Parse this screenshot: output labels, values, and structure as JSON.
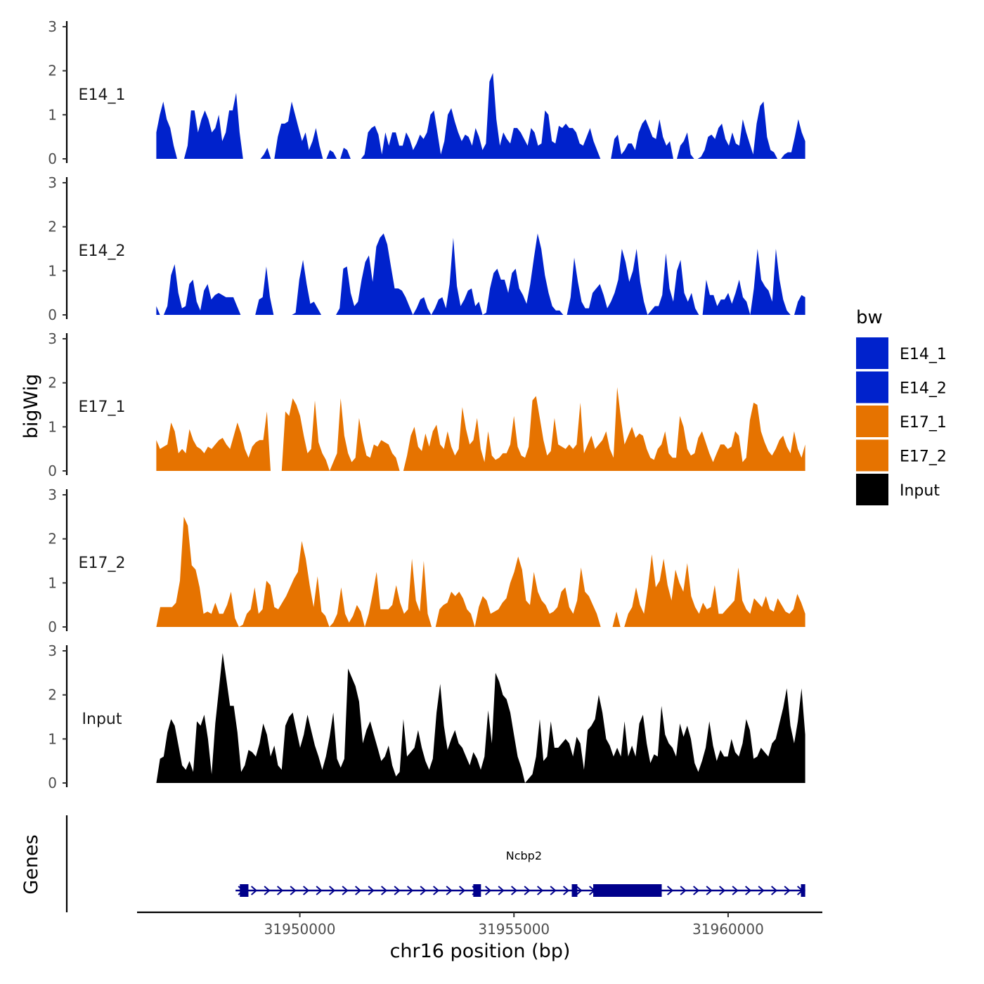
{
  "chart_data": {
    "type": "area",
    "title": "",
    "xlabel": "chr16 position (bp)",
    "ylabel": "bigWig",
    "genes_panel_label": "Genes",
    "xlim": [
      31946200,
      31962200
    ],
    "x_ticks": [
      31950000,
      31955000,
      31960000
    ],
    "x_tick_labels": [
      "31950000",
      "31955000",
      "31960000"
    ],
    "ylim": [
      0,
      3
    ],
    "y_ticks": [
      0,
      1,
      2,
      3
    ],
    "y_tick_labels": [
      "0",
      "1",
      "2",
      "3"
    ],
    "legend": {
      "title": "bw",
      "position": "right",
      "entries": [
        {
          "label": "E14_1",
          "color": "#0022cc"
        },
        {
          "label": "E14_2",
          "color": "#0022cc"
        },
        {
          "label": "E17_1",
          "color": "#e67300"
        },
        {
          "label": "E17_2",
          "color": "#e67300"
        },
        {
          "label": "Input",
          "color": "#000000"
        }
      ]
    },
    "series": [
      {
        "name": "E14_1",
        "color": "#0022cc",
        "x_start": 31946650,
        "x_end": 31961800,
        "values": [
          0.6,
          1.0,
          1.3,
          0.9,
          0.7,
          0.3,
          0,
          0,
          0,
          0.3,
          1.1,
          1.1,
          0.6,
          0.9,
          1.1,
          0.9,
          0.6,
          0.7,
          1.0,
          0.4,
          0.6,
          1.1,
          1.1,
          1.5,
          0.6,
          0,
          0,
          0,
          0,
          0,
          0,
          0.1,
          0.25,
          0,
          0,
          0.5,
          0.8,
          0.8,
          0.85,
          1.3,
          1.0,
          0.7,
          0.4,
          0.6,
          0.2,
          0.4,
          0.7,
          0.3,
          0,
          0,
          0.2,
          0.15,
          0,
          0,
          0.25,
          0.2,
          0,
          0,
          0,
          0,
          0.1,
          0.6,
          0.7,
          0.75,
          0.55,
          0.1,
          0.6,
          0.3,
          0.6,
          0.6,
          0.3,
          0.3,
          0.6,
          0.45,
          0.2,
          0.35,
          0.55,
          0.45,
          0.6,
          1.0,
          1.1,
          0.6,
          0.1,
          0.4,
          1.0,
          1.15,
          0.85,
          0.6,
          0.4,
          0.55,
          0.5,
          0.3,
          0.7,
          0.5,
          0.2,
          0.35,
          1.75,
          1.95,
          0.9,
          0.3,
          0.6,
          0.45,
          0.35,
          0.7,
          0.7,
          0.6,
          0.45,
          0.3,
          0.7,
          0.6,
          0.3,
          0.35,
          1.1,
          1.0,
          0.4,
          0.35,
          0.75,
          0.7,
          0.8,
          0.7,
          0.7,
          0.6,
          0.35,
          0.3,
          0.5,
          0.7,
          0.4,
          0.2,
          0,
          0,
          0,
          0,
          0.45,
          0.55,
          0.1,
          0.2,
          0.35,
          0.35,
          0.2,
          0.6,
          0.8,
          0.9,
          0.7,
          0.5,
          0.45,
          0.9,
          0.5,
          0.3,
          0.4,
          0,
          0,
          0.3,
          0.4,
          0.6,
          0.1,
          0,
          0,
          0.05,
          0.2,
          0.5,
          0.55,
          0.45,
          0.7,
          0.8,
          0.45,
          0.3,
          0.6,
          0.35,
          0.3,
          0.9,
          0.6,
          0.35,
          0.1,
          0.8,
          1.2,
          1.3,
          0.5,
          0.2,
          0.15,
          0,
          0,
          0.1,
          0.15,
          0.15,
          0.5,
          0.9,
          0.6,
          0.4
        ]
      },
      {
        "name": "E14_2",
        "color": "#0022cc",
        "x_start": 31946650,
        "x_end": 31961800,
        "values": [
          0.2,
          0,
          0,
          0.2,
          0.9,
          1.15,
          0.5,
          0.15,
          0.2,
          0.7,
          0.8,
          0.3,
          0.1,
          0.55,
          0.7,
          0.35,
          0.45,
          0.5,
          0.45,
          0.4,
          0.4,
          0.4,
          0.2,
          0,
          0,
          0,
          0,
          0,
          0.35,
          0.4,
          1.1,
          0.4,
          0,
          0,
          0,
          0,
          0,
          0,
          0.05,
          0.8,
          1.25,
          0.7,
          0.25,
          0.3,
          0.15,
          0,
          0,
          0,
          0,
          0,
          0.15,
          1.05,
          1.1,
          0.5,
          0.2,
          0.3,
          0.8,
          1.2,
          1.35,
          0.75,
          1.55,
          1.75,
          1.85,
          1.6,
          1.1,
          0.6,
          0.6,
          0.55,
          0.4,
          0.2,
          0,
          0.15,
          0.35,
          0.4,
          0.15,
          0,
          0.15,
          0.35,
          0.4,
          0.15,
          0.7,
          1.75,
          0.65,
          0.2,
          0.35,
          0.55,
          0.6,
          0.2,
          0.3,
          0,
          0.05,
          0.6,
          0.95,
          1.05,
          0.8,
          0.8,
          0.5,
          0.95,
          1.05,
          0.6,
          0.45,
          0.25,
          0.7,
          1.3,
          1.85,
          1.5,
          0.9,
          0.5,
          0.2,
          0.1,
          0.1,
          0,
          0,
          0.4,
          1.3,
          0.75,
          0.3,
          0.15,
          0.15,
          0.5,
          0.6,
          0.7,
          0.45,
          0.15,
          0.3,
          0.5,
          0.8,
          1.5,
          1.2,
          0.75,
          1.0,
          1.5,
          0.75,
          0.3,
          0,
          0.1,
          0.2,
          0.2,
          0.45,
          1.4,
          0.6,
          0.3,
          1.0,
          1.25,
          0.5,
          0.3,
          0.5,
          0.15,
          0,
          0,
          0.8,
          0.45,
          0.45,
          0.2,
          0.35,
          0.35,
          0.5,
          0.25,
          0.5,
          0.8,
          0.4,
          0.3,
          0,
          0.6,
          1.5,
          0.8,
          0.65,
          0.55,
          0.3,
          1.5,
          0.8,
          0.35,
          0.1,
          0,
          0,
          0.3,
          0.45,
          0.4
        ]
      },
      {
        "name": "E17_1",
        "color": "#e67300",
        "x_start": 31946650,
        "x_end": 31961800,
        "values": [
          0.7,
          0.5,
          0.55,
          0.6,
          1.1,
          0.9,
          0.4,
          0.5,
          0.4,
          0.95,
          0.7,
          0.55,
          0.5,
          0.4,
          0.55,
          0.5,
          0.6,
          0.7,
          0.75,
          0.6,
          0.5,
          0.8,
          1.1,
          0.85,
          0.5,
          0.3,
          0.55,
          0.65,
          0.7,
          0.7,
          1.35,
          0,
          0,
          0,
          0,
          1.35,
          1.25,
          1.65,
          1.5,
          1.25,
          0.8,
          0.4,
          0.5,
          1.6,
          0.65,
          0.4,
          0.25,
          0,
          0.2,
          0.4,
          1.65,
          0.8,
          0.4,
          0.2,
          0.3,
          1.2,
          0.7,
          0.35,
          0.3,
          0.6,
          0.55,
          0.7,
          0.65,
          0.6,
          0.4,
          0.3,
          0,
          0,
          0.35,
          0.8,
          1.0,
          0.55,
          0.45,
          0.85,
          0.55,
          0.9,
          1.05,
          0.6,
          0.5,
          0.9,
          0.55,
          0.35,
          0.5,
          1.45,
          0.95,
          0.6,
          0.7,
          1.2,
          0.5,
          0.2,
          0.9,
          0.35,
          0.25,
          0.3,
          0.4,
          0.4,
          0.6,
          1.25,
          0.55,
          0.35,
          0.3,
          0.55,
          1.6,
          1.7,
          1.2,
          0.7,
          0.35,
          0.45,
          1.2,
          0.6,
          0.55,
          0.5,
          0.6,
          0.5,
          0.6,
          1.55,
          0.4,
          0.6,
          0.8,
          0.5,
          0.6,
          0.7,
          0.9,
          0.5,
          0.3,
          1.9,
          1.2,
          0.6,
          0.8,
          1.0,
          0.75,
          0.85,
          0.8,
          0.5,
          0.3,
          0.25,
          0.5,
          0.6,
          0.9,
          0.4,
          0.3,
          0.3,
          1.25,
          1.0,
          0.5,
          0.35,
          0.4,
          0.75,
          0.9,
          0.65,
          0.4,
          0.2,
          0.4,
          0.6,
          0.6,
          0.5,
          0.55,
          0.9,
          0.8,
          0.2,
          0.3,
          1.15,
          1.55,
          1.5,
          0.9,
          0.65,
          0.45,
          0.35,
          0.5,
          0.7,
          0.8,
          0.55,
          0.4,
          0.9,
          0.5,
          0.3,
          0.6
        ]
      },
      {
        "name": "E17_2",
        "color": "#e67300",
        "x_start": 31946650,
        "x_end": 31961800,
        "values": [
          0,
          0.45,
          0.45,
          0.45,
          0.45,
          0.55,
          1.05,
          2.5,
          2.3,
          1.4,
          1.3,
          0.9,
          0.3,
          0.35,
          0.3,
          0.55,
          0.3,
          0.3,
          0.5,
          0.8,
          0.2,
          0,
          0.05,
          0.3,
          0.4,
          0.9,
          0.3,
          0.4,
          1.05,
          0.95,
          0.45,
          0.4,
          0.55,
          0.7,
          0.9,
          1.1,
          1.25,
          1.95,
          1.55,
          0.95,
          0.45,
          1.15,
          0.35,
          0.25,
          0,
          0.1,
          0.3,
          0.9,
          0.3,
          0.1,
          0.25,
          0.5,
          0.35,
          0,
          0.3,
          0.75,
          1.25,
          0.4,
          0.4,
          0.4,
          0.5,
          0.95,
          0.55,
          0.3,
          0.4,
          1.55,
          0.6,
          0.35,
          1.5,
          0.3,
          0,
          0,
          0.4,
          0.5,
          0.55,
          0.8,
          0.7,
          0.8,
          0.65,
          0.4,
          0.3,
          0,
          0.45,
          0.7,
          0.6,
          0.3,
          0.35,
          0.4,
          0.55,
          0.65,
          1.0,
          1.25,
          1.6,
          1.3,
          0.6,
          0.5,
          1.25,
          0.8,
          0.6,
          0.5,
          0.3,
          0.35,
          0.45,
          0.8,
          0.9,
          0.45,
          0.3,
          0.6,
          1.35,
          0.8,
          0.7,
          0.5,
          0.3,
          0,
          0,
          0,
          0,
          0.35,
          0,
          0,
          0.3,
          0.45,
          0.9,
          0.5,
          0.3,
          0.9,
          1.65,
          0.9,
          1.05,
          1.55,
          0.95,
          0.6,
          1.3,
          1.0,
          0.8,
          1.45,
          0.7,
          0.45,
          0.3,
          0.55,
          0.4,
          0.45,
          0.95,
          0.3,
          0.3,
          0.4,
          0.5,
          0.6,
          1.35,
          0.6,
          0.4,
          0.3,
          0.65,
          0.55,
          0.45,
          0.7,
          0.4,
          0.35,
          0.65,
          0.5,
          0.35,
          0.3,
          0.4,
          0.75,
          0.55,
          0.3
        ]
      },
      {
        "name": "Input",
        "color": "#000000",
        "x_start": 31946650,
        "x_end": 31961800,
        "values": [
          0,
          0.55,
          0.6,
          1.15,
          1.45,
          1.3,
          0.85,
          0.4,
          0.3,
          0.5,
          0.25,
          1.4,
          1.3,
          1.55,
          1.0,
          0.2,
          1.35,
          2.15,
          2.95,
          2.35,
          1.75,
          1.75,
          1.15,
          0.25,
          0.4,
          0.75,
          0.7,
          0.6,
          0.9,
          1.35,
          1.1,
          0.6,
          0.85,
          0.4,
          0.3,
          1.3,
          1.5,
          1.6,
          1.2,
          0.8,
          1.1,
          1.55,
          1.2,
          0.85,
          0.6,
          0.3,
          0.6,
          1.05,
          1.6,
          0.55,
          0.35,
          0.55,
          2.6,
          2.4,
          2.2,
          1.85,
          0.9,
          1.2,
          1.4,
          1.1,
          0.8,
          0.5,
          0.6,
          0.85,
          0.4,
          0.15,
          0.25,
          1.45,
          0.6,
          0.7,
          0.8,
          1.2,
          0.8,
          0.5,
          0.3,
          0.55,
          1.6,
          2.25,
          1.3,
          0.75,
          1.0,
          1.2,
          0.9,
          0.8,
          0.6,
          0.4,
          0.7,
          0.55,
          0.3,
          0.6,
          1.65,
          0.9,
          2.5,
          2.3,
          2.0,
          1.9,
          1.6,
          1.1,
          0.6,
          0.35,
          0,
          0.1,
          0.2,
          0.6,
          1.45,
          0.5,
          0.6,
          1.4,
          0.8,
          0.8,
          0.9,
          1.0,
          0.9,
          0.6,
          1.05,
          0.9,
          0.3,
          1.2,
          1.3,
          1.45,
          2.0,
          1.6,
          1.0,
          0.85,
          0.6,
          0.8,
          0.6,
          1.4,
          0.6,
          0.85,
          0.6,
          1.35,
          1.55,
          0.9,
          0.45,
          0.65,
          0.6,
          1.75,
          1.1,
          0.9,
          0.8,
          0.6,
          1.35,
          1.05,
          1.3,
          1.0,
          0.45,
          0.25,
          0.5,
          0.8,
          1.4,
          0.85,
          0.5,
          0.75,
          0.6,
          0.6,
          1.0,
          0.7,
          0.6,
          0.9,
          1.45,
          1.2,
          0.55,
          0.6,
          0.8,
          0.7,
          0.6,
          0.9,
          1.0,
          1.35,
          1.7,
          2.15,
          1.3,
          0.9,
          1.4,
          2.15,
          1.1
        ]
      }
    ],
    "gene_track": {
      "gene_name": "Ncbp2",
      "color": "#00008b",
      "strand": "+",
      "start": 31948500,
      "end": 31961800,
      "exons": [
        {
          "start": 31948600,
          "end": 31948800
        },
        {
          "start": 31954050,
          "end": 31954230
        },
        {
          "start": 31956350,
          "end": 31956480
        },
        {
          "start": 31956850,
          "end": 31958450
        },
        {
          "start": 31961700,
          "end": 31961800
        }
      ]
    }
  }
}
